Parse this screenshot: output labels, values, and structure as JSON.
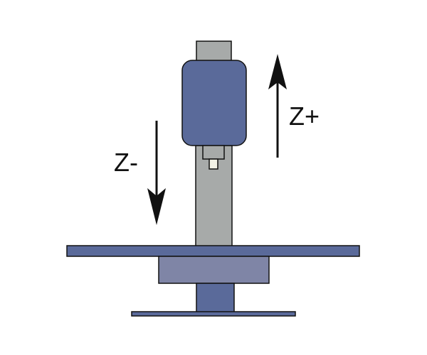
{
  "labels": {
    "z_plus": "Z+",
    "z_minus": "Z-"
  },
  "colors": {
    "background": "#ffffff",
    "spindle_housing": "#5a6a9a",
    "spindle_top": "#a7aaa9",
    "column": "#a7aaa9",
    "tool_holder": "#a7aaa9",
    "tool_tip": "#f2f2e6",
    "table": "#5a6a9a",
    "saddle": "#7f85a6",
    "pedestal": "#5a6a9a",
    "base": "#5a6a9a",
    "outline": "#111111",
    "arrow": "#111111"
  },
  "arrows": {
    "up": {
      "direction": "up",
      "label_ref": "z_plus"
    },
    "down": {
      "direction": "down",
      "label_ref": "z_minus"
    }
  }
}
